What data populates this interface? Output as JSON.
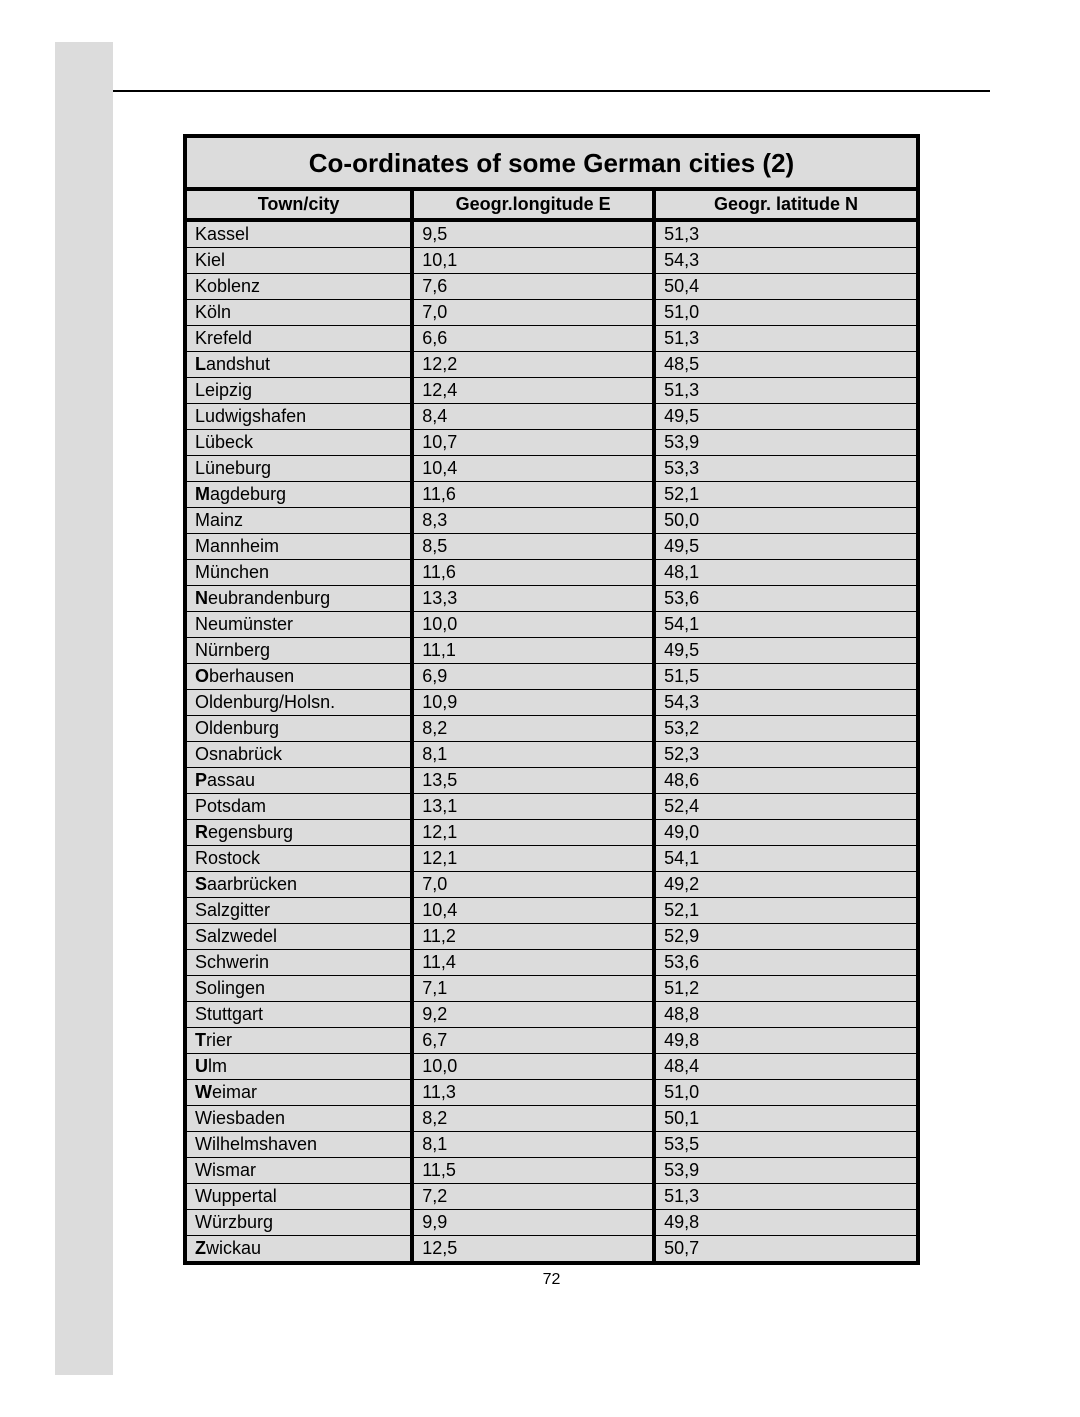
{
  "page": {
    "number": "72",
    "colors": {
      "sidebar": "#dcdcdc",
      "table_bg": "#dcdcdc",
      "border": "#000000",
      "text": "#000000",
      "page_bg": "#ffffff"
    }
  },
  "table": {
    "title": "Co-ordinates of some German cities (2)",
    "columns": [
      "Town/city",
      "Geogr.longitude E",
      "Geogr. latitude N"
    ],
    "rows": [
      {
        "city": "Kassel",
        "bold_initial": false,
        "lon": "9,5",
        "lat": "51,3"
      },
      {
        "city": "Kiel",
        "bold_initial": false,
        "lon": "10,1",
        "lat": "54,3"
      },
      {
        "city": "Koblenz",
        "bold_initial": false,
        "lon": "7,6",
        "lat": "50,4"
      },
      {
        "city": "Köln",
        "bold_initial": false,
        "lon": "7,0",
        "lat": "51,0"
      },
      {
        "city": "Krefeld",
        "bold_initial": false,
        "lon": "6,6",
        "lat": "51,3"
      },
      {
        "city": "Landshut",
        "bold_initial": true,
        "lon": "12,2",
        "lat": "48,5"
      },
      {
        "city": "Leipzig",
        "bold_initial": false,
        "lon": "12,4",
        "lat": "51,3"
      },
      {
        "city": "Ludwigshafen",
        "bold_initial": false,
        "lon": "8,4",
        "lat": "49,5"
      },
      {
        "city": "Lübeck",
        "bold_initial": false,
        "lon": "10,7",
        "lat": "53,9"
      },
      {
        "city": "Lüneburg",
        "bold_initial": false,
        "lon": "10,4",
        "lat": "53,3"
      },
      {
        "city": "Magdeburg",
        "bold_initial": true,
        "lon": "11,6",
        "lat": "52,1"
      },
      {
        "city": "Mainz",
        "bold_initial": false,
        "lon": "8,3",
        "lat": "50,0"
      },
      {
        "city": "Mannheim",
        "bold_initial": false,
        "lon": "8,5",
        "lat": "49,5"
      },
      {
        "city": "München",
        "bold_initial": false,
        "lon": "11,6",
        "lat": "48,1"
      },
      {
        "city": "Neubrandenburg",
        "bold_initial": true,
        "lon": "13,3",
        "lat": "53,6"
      },
      {
        "city": "Neumünster",
        "bold_initial": false,
        "lon": "10,0",
        "lat": "54,1"
      },
      {
        "city": "Nürnberg",
        "bold_initial": false,
        "lon": "11,1",
        "lat": "49,5"
      },
      {
        "city": "Oberhausen",
        "bold_initial": true,
        "lon": "6,9",
        "lat": "51,5"
      },
      {
        "city": "Oldenburg/Holsn.",
        "bold_initial": false,
        "lon": "10,9",
        "lat": "54,3"
      },
      {
        "city": "Oldenburg",
        "bold_initial": false,
        "lon": "8,2",
        "lat": "53,2"
      },
      {
        "city": "Osnabrück",
        "bold_initial": false,
        "lon": "8,1",
        "lat": "52,3"
      },
      {
        "city": "Passau",
        "bold_initial": true,
        "lon": "13,5",
        "lat": "48,6"
      },
      {
        "city": "Potsdam",
        "bold_initial": false,
        "lon": "13,1",
        "lat": "52,4"
      },
      {
        "city": "Regensburg",
        "bold_initial": true,
        "lon": "12,1",
        "lat": "49,0"
      },
      {
        "city": "Rostock",
        "bold_initial": false,
        "lon": "12,1",
        "lat": "54,1"
      },
      {
        "city": "Saarbrücken",
        "bold_initial": true,
        "lon": "7,0",
        "lat": "49,2"
      },
      {
        "city": "Salzgitter",
        "bold_initial": false,
        "lon": "10,4",
        "lat": "52,1"
      },
      {
        "city": "Salzwedel",
        "bold_initial": false,
        "lon": "11,2",
        "lat": "52,9"
      },
      {
        "city": "Schwerin",
        "bold_initial": false,
        "lon": "11,4",
        "lat": "53,6"
      },
      {
        "city": "Solingen",
        "bold_initial": false,
        "lon": "7,1",
        "lat": "51,2"
      },
      {
        "city": "Stuttgart",
        "bold_initial": false,
        "lon": "9,2",
        "lat": "48,8"
      },
      {
        "city": "Trier",
        "bold_initial": true,
        "lon": "6,7",
        "lat": "49,8"
      },
      {
        "city": "Ulm",
        "bold_initial": true,
        "lon": "10,0",
        "lat": "48,4"
      },
      {
        "city": "Weimar",
        "bold_initial": true,
        "lon": "11,3",
        "lat": "51,0"
      },
      {
        "city": "Wiesbaden",
        "bold_initial": false,
        "lon": "8,2",
        "lat": "50,1"
      },
      {
        "city": "Wilhelmshaven",
        "bold_initial": false,
        "lon": "8,1",
        "lat": "53,5"
      },
      {
        "city": "Wismar",
        "bold_initial": false,
        "lon": "11,5",
        "lat": "53,9"
      },
      {
        "city": "Wuppertal",
        "bold_initial": false,
        "lon": "7,2",
        "lat": "51,3"
      },
      {
        "city": "Würzburg",
        "bold_initial": false,
        "lon": "9,9",
        "lat": "49,8"
      },
      {
        "city": "Zwickau",
        "bold_initial": true,
        "lon": "12,5",
        "lat": "50,7"
      }
    ]
  }
}
